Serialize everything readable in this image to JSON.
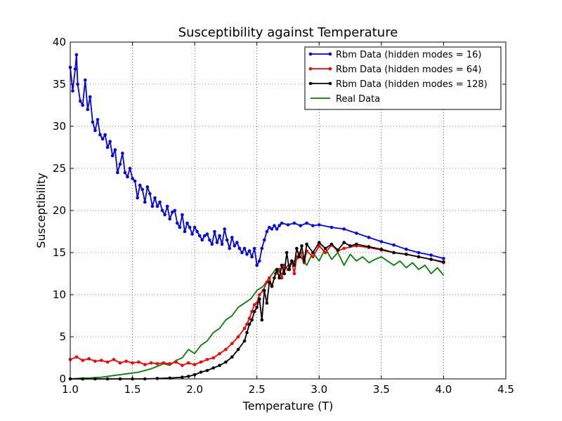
{
  "chart_data": {
    "type": "line",
    "title": "Susceptibility against Temperature",
    "xlabel": "Temperature (T)",
    "ylabel": "Susceptibility",
    "xlim": [
      1.0,
      4.5
    ],
    "ylim": [
      0,
      40
    ],
    "xticks": [
      "1.0",
      "1.5",
      "2.0",
      "2.5",
      "3.0",
      "3.5",
      "4.0",
      "4.5"
    ],
    "yticks": [
      "0",
      "5",
      "10",
      "15",
      "20",
      "25",
      "30",
      "35",
      "40"
    ],
    "grid": true,
    "legend_position": "top-right",
    "series": [
      {
        "name": "Rbm Data (hidden modes = 16)",
        "color": "#0000ff",
        "markers": true,
        "x": [
          1.0,
          1.02,
          1.04,
          1.05,
          1.06,
          1.08,
          1.1,
          1.12,
          1.14,
          1.16,
          1.18,
          1.2,
          1.22,
          1.24,
          1.26,
          1.28,
          1.3,
          1.32,
          1.34,
          1.36,
          1.38,
          1.4,
          1.42,
          1.44,
          1.46,
          1.48,
          1.5,
          1.52,
          1.54,
          1.56,
          1.58,
          1.6,
          1.62,
          1.64,
          1.66,
          1.68,
          1.7,
          1.72,
          1.74,
          1.76,
          1.78,
          1.8,
          1.82,
          1.84,
          1.86,
          1.88,
          1.9,
          1.92,
          1.94,
          1.96,
          1.98,
          2.0,
          2.02,
          2.04,
          2.06,
          2.08,
          2.1,
          2.12,
          2.14,
          2.16,
          2.18,
          2.2,
          2.22,
          2.24,
          2.26,
          2.28,
          2.3,
          2.32,
          2.34,
          2.36,
          2.38,
          2.4,
          2.42,
          2.44,
          2.46,
          2.48,
          2.5,
          2.52,
          2.54,
          2.56,
          2.58,
          2.6,
          2.62,
          2.64,
          2.66,
          2.68,
          2.7,
          2.75,
          2.8,
          2.85,
          2.9,
          2.95,
          3.0,
          3.1,
          3.2,
          3.3,
          3.4,
          3.5,
          3.6,
          3.7,
          3.8,
          3.9,
          4.0
        ],
        "y": [
          37.0,
          34.2,
          36.8,
          38.5,
          35.0,
          33.0,
          32.5,
          35.5,
          32.0,
          33.5,
          30.5,
          29.5,
          30.8,
          29.0,
          28.5,
          29.0,
          27.5,
          28.2,
          26.5,
          27.2,
          24.5,
          25.5,
          26.8,
          24.5,
          24.0,
          25.0,
          23.8,
          23.5,
          21.5,
          23.0,
          22.5,
          21.0,
          22.8,
          22.0,
          20.5,
          21.5,
          20.5,
          21.0,
          20.0,
          19.5,
          20.5,
          19.0,
          19.8,
          20.0,
          18.5,
          18.0,
          19.5,
          17.5,
          18.5,
          18.0,
          17.2,
          18.0,
          17.5,
          17.0,
          16.5,
          17.0,
          17.2,
          16.5,
          16.0,
          17.5,
          16.2,
          17.0,
          16.0,
          17.8,
          16.5,
          15.5,
          16.8,
          15.8,
          16.2,
          15.5,
          15.0,
          15.5,
          14.8,
          15.2,
          14.5,
          15.5,
          13.5,
          14.0,
          15.5,
          16.5,
          17.5,
          18.0,
          17.8,
          18.2,
          17.8,
          18.2,
          18.5,
          18.3,
          18.5,
          18.2,
          18.5,
          18.2,
          18.3,
          18.0,
          17.8,
          17.3,
          16.8,
          16.3,
          15.9,
          15.4,
          15.0,
          14.7,
          14.3
        ]
      },
      {
        "name": "Rbm Data (hidden modes = 64)",
        "color": "#ff0000",
        "markers": true,
        "x": [
          1.0,
          1.05,
          1.1,
          1.15,
          1.2,
          1.25,
          1.3,
          1.35,
          1.4,
          1.45,
          1.5,
          1.55,
          1.6,
          1.65,
          1.7,
          1.75,
          1.8,
          1.85,
          1.9,
          1.95,
          2.0,
          2.05,
          2.1,
          2.15,
          2.2,
          2.25,
          2.3,
          2.35,
          2.4,
          2.42,
          2.44,
          2.46,
          2.48,
          2.5,
          2.52,
          2.55,
          2.58,
          2.6,
          2.62,
          2.65,
          2.68,
          2.7,
          2.72,
          2.75,
          2.78,
          2.8,
          2.82,
          2.85,
          2.88,
          2.9,
          2.95,
          3.0,
          3.05,
          3.1,
          3.15,
          3.2,
          3.3,
          3.4,
          3.5,
          3.6,
          3.7,
          3.8,
          3.9,
          4.0
        ],
        "y": [
          2.3,
          2.6,
          2.2,
          2.4,
          2.1,
          2.2,
          2.0,
          2.3,
          1.9,
          2.1,
          1.9,
          2.0,
          1.7,
          1.9,
          1.8,
          1.9,
          1.8,
          2.0,
          1.6,
          1.9,
          1.7,
          2.0,
          2.3,
          2.5,
          3.0,
          3.5,
          4.2,
          5.0,
          6.0,
          6.5,
          7.2,
          8.0,
          8.8,
          9.0,
          10.0,
          10.5,
          11.5,
          12.0,
          11.0,
          12.5,
          13.0,
          12.0,
          13.5,
          13.0,
          14.0,
          12.5,
          14.5,
          15.0,
          13.8,
          15.2,
          14.5,
          15.8,
          15.0,
          15.9,
          15.2,
          15.5,
          15.8,
          15.6,
          15.3,
          15.0,
          14.8,
          14.5,
          14.2,
          13.8
        ]
      },
      {
        "name": "Rbm Data (hidden modes = 128)",
        "color": "#000000",
        "markers": true,
        "x": [
          1.0,
          1.1,
          1.2,
          1.3,
          1.4,
          1.5,
          1.6,
          1.7,
          1.8,
          1.9,
          1.95,
          2.0,
          2.05,
          2.1,
          2.15,
          2.2,
          2.25,
          2.3,
          2.35,
          2.4,
          2.42,
          2.44,
          2.46,
          2.48,
          2.5,
          2.52,
          2.54,
          2.56,
          2.58,
          2.6,
          2.62,
          2.64,
          2.66,
          2.68,
          2.7,
          2.72,
          2.74,
          2.76,
          2.78,
          2.8,
          2.82,
          2.84,
          2.86,
          2.88,
          2.9,
          2.95,
          3.0,
          3.05,
          3.1,
          3.15,
          3.2,
          3.25,
          3.3,
          3.4,
          3.5,
          3.6,
          3.7,
          3.8,
          3.9,
          4.0
        ],
        "y": [
          0.0,
          0.0,
          0.0,
          0.0,
          0.0,
          0.0,
          0.0,
          0.05,
          0.1,
          0.2,
          0.3,
          0.5,
          0.8,
          1.0,
          1.3,
          1.6,
          2.0,
          2.6,
          3.5,
          4.5,
          5.5,
          6.5,
          7.0,
          8.0,
          8.5,
          9.5,
          7.0,
          10.5,
          9.0,
          11.5,
          11.0,
          12.0,
          13.0,
          12.0,
          13.5,
          12.5,
          15.0,
          13.0,
          14.0,
          13.5,
          15.5,
          14.5,
          15.8,
          14.0,
          16.0,
          15.0,
          16.2,
          15.5,
          16.0,
          15.3,
          16.2,
          15.8,
          16.0,
          15.7,
          15.4,
          15.0,
          14.8,
          14.5,
          14.2,
          13.9
        ]
      },
      {
        "name": "Real Data",
        "color": "#008000",
        "markers": false,
        "x": [
          1.0,
          1.05,
          1.1,
          1.15,
          1.2,
          1.25,
          1.3,
          1.35,
          1.4,
          1.45,
          1.5,
          1.55,
          1.6,
          1.65,
          1.7,
          1.75,
          1.8,
          1.85,
          1.9,
          1.95,
          2.0,
          2.05,
          2.1,
          2.15,
          2.2,
          2.25,
          2.3,
          2.35,
          2.4,
          2.45,
          2.5,
          2.55,
          2.6,
          2.65,
          2.7,
          2.75,
          2.8,
          2.85,
          2.9,
          2.95,
          3.0,
          3.05,
          3.1,
          3.15,
          3.2,
          3.25,
          3.3,
          3.35,
          3.4,
          3.45,
          3.5,
          3.55,
          3.6,
          3.65,
          3.7,
          3.75,
          3.8,
          3.85,
          3.9,
          3.95,
          4.0
        ],
        "y": [
          0.0,
          0.05,
          0.1,
          0.1,
          0.15,
          0.2,
          0.3,
          0.4,
          0.5,
          0.6,
          0.7,
          0.8,
          1.0,
          1.2,
          1.5,
          1.8,
          1.6,
          2.2,
          2.5,
          3.5,
          3.0,
          4.0,
          4.5,
          5.5,
          6.0,
          7.0,
          7.5,
          8.5,
          9.0,
          9.5,
          10.5,
          11.0,
          12.0,
          13.0,
          12.5,
          13.5,
          14.0,
          14.5,
          13.5,
          15.0,
          14.0,
          15.5,
          14.2,
          15.0,
          13.5,
          14.8,
          14.0,
          14.5,
          13.8,
          14.2,
          14.5,
          14.0,
          13.5,
          14.0,
          13.2,
          13.8,
          13.0,
          13.5,
          12.5,
          13.2,
          12.3
        ]
      }
    ]
  }
}
